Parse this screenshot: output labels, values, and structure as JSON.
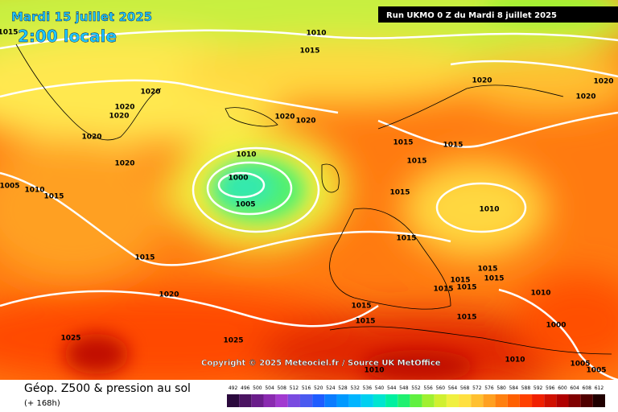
{
  "header": {
    "date": "Mardi 15 juillet 2025",
    "time": "2:00 locale",
    "run": "Run UKMO 0 Z du Mardi 8 juillet 2025"
  },
  "copyright": "Copyright © 2025 Meteociel.fr / Source UK MetOffice",
  "footer": {
    "title": "Géop. Z500 & pression au sol",
    "subtitle": "(+ 168h)"
  },
  "isobar_labels": [
    "1015",
    "1010",
    "1015",
    "1020",
    "1020",
    "1020",
    "1020",
    "1020",
    "1020",
    "1010",
    "1000",
    "1005",
    "1020",
    "1005",
    "1010",
    "1015",
    "1015",
    "1020",
    "1025",
    "1025",
    "1015",
    "1015",
    "1015",
    "1015",
    "1010",
    "1015",
    "1020",
    "1020",
    "1020",
    "1015",
    "1015",
    "1015",
    "1015",
    "1015",
    "1010",
    "1015",
    "1015",
    "1015",
    "1000",
    "1010",
    "1005",
    "1005",
    "1010"
  ],
  "scale": {
    "labels": [
      492,
      496,
      500,
      504,
      508,
      512,
      516,
      520,
      524,
      528,
      532,
      536,
      540,
      544,
      548,
      552,
      556,
      560,
      564,
      568,
      572,
      576,
      580,
      584,
      588,
      592,
      596,
      600,
      604,
      608,
      612
    ],
    "colors": [
      "#2b0a3d",
      "#4b1461",
      "#6a1d8a",
      "#8a2ab0",
      "#a23ad0",
      "#7a4be0",
      "#4a5af0",
      "#1e5cff",
      "#0a7cff",
      "#0099ff",
      "#00b5ff",
      "#00d0f0",
      "#00e5d0",
      "#00f0a0",
      "#20f070",
      "#60f040",
      "#a0f030",
      "#d0f030",
      "#f0f040",
      "#ffe040",
      "#ffc030",
      "#ffa020",
      "#ff8010",
      "#ff6000",
      "#ff4000",
      "#f02000",
      "#d01000",
      "#b00000",
      "#800000",
      "#500000",
      "#200000"
    ]
  }
}
